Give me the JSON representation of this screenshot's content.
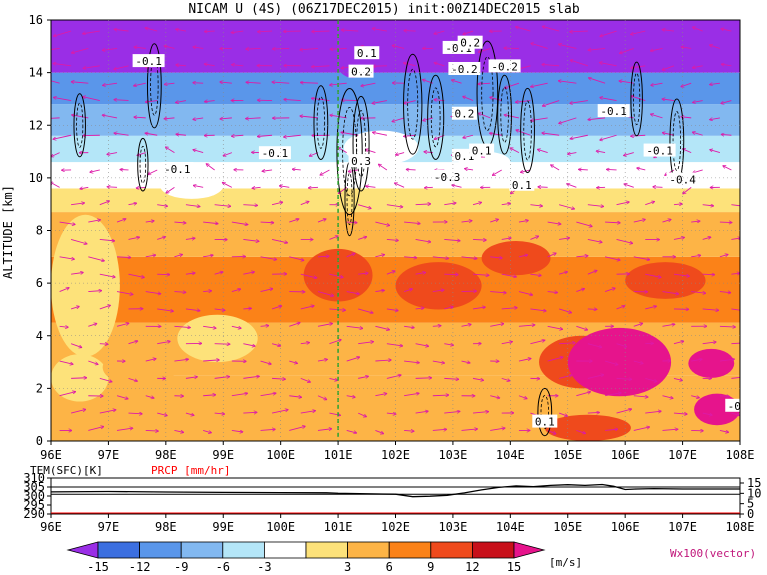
{
  "colors": {
    "purple": "#9a2ee6",
    "blue_dark": "#3c6fe0",
    "blue_mid": "#5a96ea",
    "blue_light": "#82b8f0",
    "cyan_light": "#b4e6f8",
    "white": "#ffffff",
    "yellow": "#fde27a",
    "orange_light": "#fdb446",
    "orange": "#fb8218",
    "red": "#ef4a1c",
    "dark_red": "#c8101a",
    "magenta": "#e6148c",
    "vector": "#dd1aa8",
    "section_line": "#2aa52a",
    "precip": "#ff0000"
  },
  "chart_data": [
    {
      "type": "heatmap",
      "title": "NICAM U (4S) (06Z17DEC2015) init:00Z14DEC2015 slab",
      "ylabel": "ALTITUDE [km]",
      "xlim": [
        96,
        108
      ],
      "ylim": [
        0,
        16
      ],
      "xticks": [
        "96E",
        "97E",
        "98E",
        "99E",
        "100E",
        "101E",
        "102E",
        "103E",
        "104E",
        "105E",
        "106E",
        "107E",
        "108E"
      ],
      "yticks": [
        "0",
        "2",
        "4",
        "6",
        "8",
        "10",
        "12",
        "14",
        "16"
      ],
      "section_line_lon": 101,
      "layers": [
        {
          "z0": 0,
          "z1": 2.5,
          "u": 6
        },
        {
          "z0": 2.5,
          "z1": 4.5,
          "u": 8
        },
        {
          "z0": 4.5,
          "z1": 7.0,
          "u": 10
        },
        {
          "z0": 7.0,
          "z1": 8.7,
          "u": 8
        },
        {
          "z0": 8.7,
          "z1": 9.6,
          "u": 4
        },
        {
          "z0": 9.6,
          "z1": 10.6,
          "u": 0
        },
        {
          "z0": 10.6,
          "z1": 11.6,
          "u": -5
        },
        {
          "z0": 11.6,
          "z1": 12.8,
          "u": -8
        },
        {
          "z0": 12.8,
          "z1": 14.0,
          "u": -11
        },
        {
          "z0": 14.0,
          "z1": 16.0,
          "u": -16
        }
      ],
      "patches": [
        {
          "lon": [
            96.0,
            97.2
          ],
          "z": [
            3.2,
            8.6
          ],
          "u": 4
        },
        {
          "lon": [
            96.0,
            97.0
          ],
          "z": [
            1.5,
            3.3
          ],
          "u": 3
        },
        {
          "lon": [
            98.2,
            99.6
          ],
          "z": [
            3.0,
            4.8
          ],
          "u": 4
        },
        {
          "lon": [
            96.9,
            98.2
          ],
          "z": [
            2.1,
            3.5
          ],
          "u": 6
        },
        {
          "lon": [
            100.4,
            101.6
          ],
          "z": [
            5.3,
            7.3
          ],
          "u": 12
        },
        {
          "lon": [
            102.0,
            103.5
          ],
          "z": [
            5.0,
            6.8
          ],
          "u": 12
        },
        {
          "lon": [
            103.5,
            104.7
          ],
          "z": [
            6.3,
            7.6
          ],
          "u": 12
        },
        {
          "lon": [
            106.0,
            107.4
          ],
          "z": [
            5.4,
            6.8
          ],
          "u": 12
        },
        {
          "lon": [
            104.5,
            106.0
          ],
          "z": [
            2.0,
            4.0
          ],
          "u": 12
        },
        {
          "lon": [
            104.6,
            106.1
          ],
          "z": [
            0.0,
            1.0
          ],
          "u": 12
        },
        {
          "lon": [
            105.0,
            106.8
          ],
          "z": [
            1.7,
            4.3
          ],
          "u": 16
        },
        {
          "lon": [
            107.1,
            107.9
          ],
          "z": [
            2.4,
            3.5
          ],
          "u": 16
        },
        {
          "lon": [
            107.2,
            108.0
          ],
          "z": [
            0.6,
            1.8
          ],
          "u": 16
        },
        {
          "lon": [
            101.1,
            102.4
          ],
          "z": [
            10.5,
            11.8
          ],
          "u": -3
        },
        {
          "lon": [
            103.1,
            104.0
          ],
          "z": [
            10.2,
            11.0
          ],
          "u": 2
        },
        {
          "lon": [
            97.9,
            99.0
          ],
          "z": [
            9.2,
            10.2
          ],
          "u": 0
        },
        {
          "lon": [
            100.9,
            101.6
          ],
          "z": [
            13.8,
            16.0
          ],
          "u": -16
        }
      ],
      "contour_labels": [
        {
          "lon": 97.7,
          "z": 14.4,
          "text": "-0.1"
        },
        {
          "lon": 99.9,
          "z": 10.9,
          "text": "-0.1"
        },
        {
          "lon": 98.2,
          "z": 10.3,
          "text": "-0.1"
        },
        {
          "lon": 101.5,
          "z": 14.7,
          "text": "0.1"
        },
        {
          "lon": 101.4,
          "z": 14.0,
          "text": "0.2"
        },
        {
          "lon": 101.4,
          "z": 10.6,
          "text": "0.3"
        },
        {
          "lon": 103.1,
          "z": 14.9,
          "text": "-0.1"
        },
        {
          "lon": 103.3,
          "z": 15.1,
          "text": "0.2"
        },
        {
          "lon": 103.2,
          "z": 14.1,
          "text": "-0.2"
        },
        {
          "lon": 103.9,
          "z": 14.2,
          "text": "-0.2"
        },
        {
          "lon": 102.9,
          "z": 10.0,
          "text": "-0.3"
        },
        {
          "lon": 103.2,
          "z": 10.8,
          "text": "0.1"
        },
        {
          "lon": 103.2,
          "z": 12.4,
          "text": "0.2"
        },
        {
          "lon": 103.5,
          "z": 11.0,
          "text": "0.1"
        },
        {
          "lon": 104.2,
          "z": 9.7,
          "text": "0.1"
        },
        {
          "lon": 105.8,
          "z": 12.5,
          "text": "-0.1"
        },
        {
          "lon": 106.6,
          "z": 11.0,
          "text": "-0.1"
        },
        {
          "lon": 107.0,
          "z": 9.9,
          "text": "-0.4"
        },
        {
          "lon": 104.6,
          "z": 0.7,
          "text": "0.1"
        },
        {
          "lon": 107.9,
          "z": 1.3,
          "text": "-0"
        }
      ]
    },
    {
      "type": "line",
      "title_left": "TEM(SFC)[K]",
      "title_right": "PRCP [mm/hr]",
      "left_ticks": [
        "310",
        "305",
        "300",
        "295",
        "290"
      ],
      "left_range": [
        290,
        310
      ],
      "right_ticks": [
        "15",
        "10",
        "5",
        "0"
      ],
      "right_range": [
        0,
        15
      ],
      "xlim": [
        96,
        108
      ],
      "xticks": [
        "96E",
        "97E",
        "98E",
        "99E",
        "100E",
        "101E",
        "102E",
        "103E",
        "104E",
        "105E",
        "106E",
        "107E",
        "108E"
      ],
      "reference_lines": [
        305.0,
        301.0
      ],
      "series": [
        {
          "x": [
            96.0,
            97.0,
            98.0,
            99.0,
            100.0,
            100.8,
            101.0,
            101.5,
            102.0,
            102.3,
            102.6,
            102.9,
            103.2,
            103.5,
            103.8,
            104.1,
            104.4,
            104.7,
            105.0,
            105.3,
            105.6,
            105.8,
            106.0,
            106.2,
            106.5,
            107.0,
            107.5,
            108.0
          ],
          "y": [
            302.3,
            302.5,
            302.2,
            302.0,
            301.9,
            301.8,
            301.5,
            301.2,
            301.0,
            299.6,
            299.9,
            300.4,
            301.7,
            303.4,
            304.8,
            305.6,
            305.2,
            305.9,
            306.3,
            305.9,
            306.4,
            305.4,
            303.6,
            303.9,
            304.1,
            303.9,
            303.9,
            303.9
          ]
        }
      ]
    },
    {
      "type": "colorbar",
      "ticks": [
        "-15",
        "-12",
        "-9",
        "-6",
        "-3",
        "3",
        "6",
        "9",
        "12",
        "15"
      ],
      "unit": "[m/s]",
      "vector_label": "Wx100(vector)"
    }
  ]
}
